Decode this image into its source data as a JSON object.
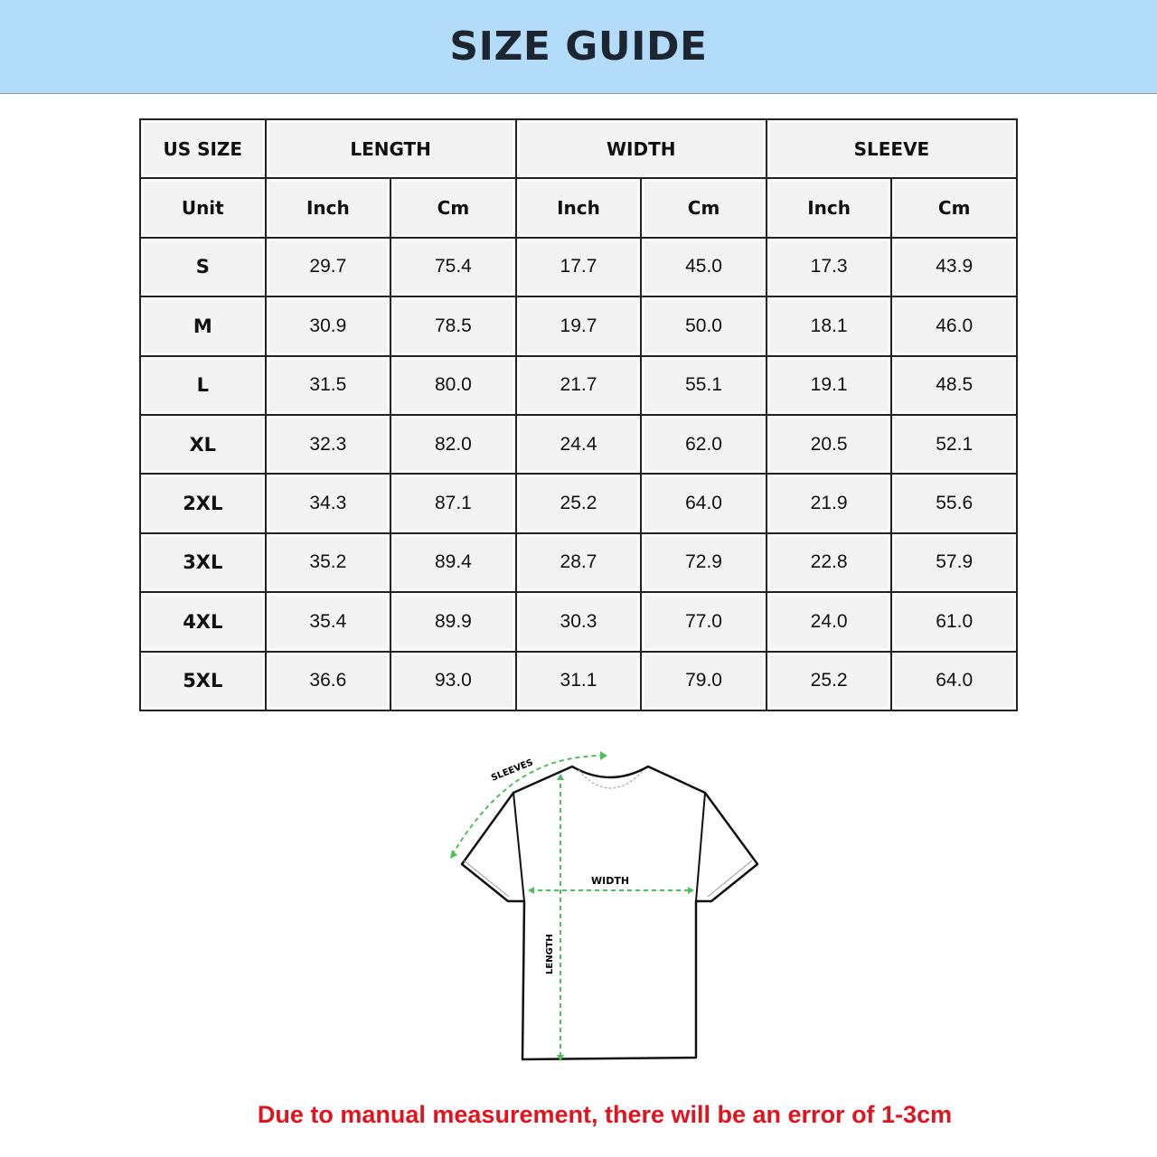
{
  "title": "SIZE GUIDE",
  "table": {
    "group_headers": [
      "US SIZE",
      "LENGTH",
      "WIDTH",
      "SLEEVE"
    ],
    "unit_row": [
      "Unit",
      "Inch",
      "Cm",
      "Inch",
      "Cm",
      "Inch",
      "Cm"
    ],
    "rows": [
      [
        "S",
        "29.7",
        "75.4",
        "17.7",
        "45.0",
        "17.3",
        "43.9"
      ],
      [
        "M",
        "30.9",
        "78.5",
        "19.7",
        "50.0",
        "18.1",
        "46.0"
      ],
      [
        "L",
        "31.5",
        "80.0",
        "21.7",
        "55.1",
        "19.1",
        "48.5"
      ],
      [
        "XL",
        "32.3",
        "82.0",
        "24.4",
        "62.0",
        "20.5",
        "52.1"
      ],
      [
        "2XL",
        "34.3",
        "87.1",
        "25.2",
        "64.0",
        "21.9",
        "55.6"
      ],
      [
        "3XL",
        "35.2",
        "89.4",
        "28.7",
        "72.9",
        "22.8",
        "57.9"
      ],
      [
        "4XL",
        "35.4",
        "89.9",
        "30.3",
        "77.0",
        "24.0",
        "61.0"
      ],
      [
        "5XL",
        "36.6",
        "93.0",
        "31.1",
        "79.0",
        "25.2",
        "64.0"
      ]
    ]
  },
  "diagram": {
    "labels": {
      "sleeves": "SLEEVES",
      "width": "WIDTH",
      "length": "LENGTH"
    },
    "measure_line_color": "#4cc05a"
  },
  "note": "Due to manual measurement, there will be an error of 1-3cm",
  "colors": {
    "banner": "#b3dcfb",
    "note": "#e0141e"
  }
}
